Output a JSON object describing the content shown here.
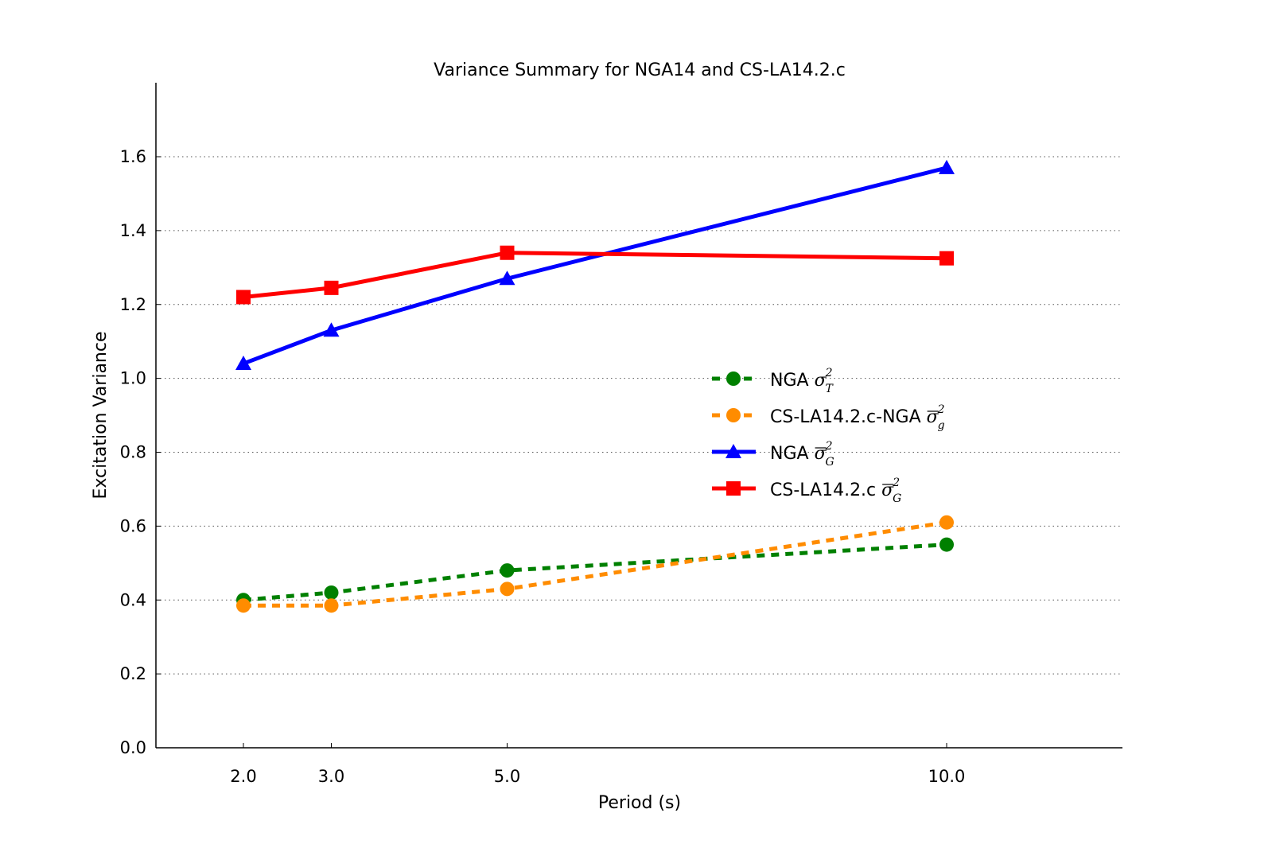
{
  "chart_data": {
    "type": "line",
    "title": "Variance Summary for NGA14 and CS-LA14.2.c",
    "xlabel": "Period (s)",
    "ylabel": "Excitation Variance",
    "x": [
      2.0,
      3.0,
      5.0,
      10.0
    ],
    "xticks": [
      "2.0",
      "3.0",
      "5.0",
      "10.0"
    ],
    "xlim": [
      1.0,
      12.0
    ],
    "yticks": [
      "0.0",
      "0.2",
      "0.4",
      "0.6",
      "0.8",
      "1.0",
      "1.2",
      "1.4",
      "1.6"
    ],
    "ylim": [
      0.0,
      1.8
    ],
    "grid": "horizontal dotted",
    "legend_position": "center-right",
    "series": [
      {
        "name": "NGA σ_T^2",
        "label_text": "NGA ",
        "sym": "σ",
        "sub": "T",
        "bar": false,
        "color": "#008000",
        "style": "dashed",
        "marker": "circle",
        "values": [
          0.4,
          0.42,
          0.48,
          0.55
        ]
      },
      {
        "name": "CS-LA14.2.c-NGA σ̄_g^2",
        "label_text": "CS-LA14.2.c-NGA ",
        "sym": "σ",
        "sub": "g",
        "bar": true,
        "color": "#ff8c00",
        "style": "dashed",
        "marker": "circle",
        "values": [
          0.385,
          0.385,
          0.43,
          0.61
        ]
      },
      {
        "name": "NGA σ̄_G^2",
        "label_text": "NGA ",
        "sym": "σ",
        "sub": "G",
        "bar": true,
        "color": "#0000ff",
        "style": "solid",
        "marker": "triangle",
        "values": [
          1.04,
          1.13,
          1.27,
          1.57
        ]
      },
      {
        "name": "CS-LA14.2.c σ̄_G^2",
        "label_text": "CS-LA14.2.c ",
        "sym": "σ",
        "sub": "G",
        "bar": true,
        "color": "#ff0000",
        "style": "solid",
        "marker": "square",
        "values": [
          1.22,
          1.245,
          1.34,
          1.325
        ]
      }
    ]
  }
}
